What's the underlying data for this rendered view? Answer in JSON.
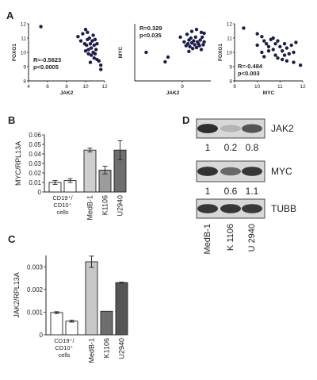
{
  "panels": {
    "a_letter": "A",
    "b_letter": "B",
    "c_letter": "C",
    "d_letter": "D"
  },
  "chart_data": [
    {
      "panel": "A",
      "type": "scatter",
      "xlabel": "JAK2",
      "ylabel": "FOXO1",
      "xlim": [
        4,
        12
      ],
      "ylim": [
        8,
        12
      ],
      "xticks": [
        "4",
        "6",
        "8",
        "10",
        "12"
      ],
      "yticks": [
        "8",
        "9",
        "10",
        "11",
        "12"
      ],
      "annotation": [
        "R=-0.5623",
        "p<0.0005"
      ],
      "points": [
        [
          5.3,
          11.8
        ],
        [
          9.2,
          11.1
        ],
        [
          9.5,
          10.8
        ],
        [
          9.7,
          11.3
        ],
        [
          10.0,
          11.6
        ],
        [
          10.1,
          10.5
        ],
        [
          10.2,
          10.9
        ],
        [
          10.3,
          10.2
        ],
        [
          10.4,
          11.0
        ],
        [
          10.5,
          10.6
        ],
        [
          10.6,
          10.3
        ],
        [
          10.7,
          10.8
        ],
        [
          10.8,
          10.0
        ],
        [
          10.9,
          10.5
        ],
        [
          11.0,
          10.9
        ],
        [
          11.1,
          10.2
        ],
        [
          11.2,
          10.6
        ],
        [
          10.0,
          10.1
        ],
        [
          10.3,
          9.9
        ],
        [
          10.6,
          9.8
        ],
        [
          10.9,
          9.6
        ],
        [
          11.0,
          9.9
        ],
        [
          11.2,
          9.5
        ],
        [
          11.4,
          9.4
        ],
        [
          10.5,
          9.3
        ],
        [
          11.6,
          9.1
        ],
        [
          11.6,
          8.8
        ],
        [
          9.9,
          10.6
        ],
        [
          10.2,
          11.4
        ],
        [
          10.8,
          11.2
        ]
      ]
    },
    {
      "panel": "A",
      "type": "scatter",
      "xlabel": "JAK2",
      "ylabel": "MYC",
      "xlim": [
        4,
        12
      ],
      "ylim": [
        6,
        12
      ],
      "xticks": [
        "9"
      ],
      "yticks": [],
      "annotation": [
        "R=0.329",
        "p<0.035"
      ],
      "points": [
        [
          5.2,
          9.0
        ],
        [
          7.2,
          8.0
        ],
        [
          7.5,
          8.5
        ],
        [
          8.8,
          10.6
        ],
        [
          9.2,
          10.1
        ],
        [
          9.4,
          9.7
        ],
        [
          9.5,
          10.9
        ],
        [
          9.6,
          9.9
        ],
        [
          9.7,
          10.3
        ],
        [
          9.8,
          9.6
        ],
        [
          9.9,
          10.5
        ],
        [
          10.0,
          10.0
        ],
        [
          10.1,
          9.4
        ],
        [
          10.2,
          10.2
        ],
        [
          10.3,
          9.8
        ],
        [
          10.4,
          10.6
        ],
        [
          10.5,
          9.5
        ],
        [
          10.6,
          10.1
        ],
        [
          10.7,
          9.9
        ],
        [
          10.8,
          9.7
        ],
        [
          10.9,
          10.3
        ],
        [
          11.0,
          9.3
        ],
        [
          11.1,
          10.6
        ],
        [
          11.2,
          9.8
        ],
        [
          11.3,
          10.1
        ],
        [
          10.0,
          11.2
        ],
        [
          10.5,
          11.4
        ],
        [
          11.0,
          11.1
        ],
        [
          11.3,
          11.0
        ],
        [
          9.7,
          9.1
        ]
      ]
    },
    {
      "panel": "A",
      "type": "scatter",
      "xlabel": "MYC",
      "ylabel": "FOXO1",
      "xlim": [
        9,
        12
      ],
      "ylim": [
        8,
        12
      ],
      "xticks": [
        "9",
        "10",
        "11",
        "12"
      ],
      "yticks": [
        "8",
        "9",
        "10",
        "11",
        "12"
      ],
      "annotation": [
        "R=-0.484",
        "p<0.003"
      ],
      "points": [
        [
          9.4,
          11.7
        ],
        [
          10.0,
          11.3
        ],
        [
          10.2,
          11.1
        ],
        [
          10.3,
          10.8
        ],
        [
          10.4,
          10.6
        ],
        [
          10.5,
          10.4
        ],
        [
          10.6,
          10.9
        ],
        [
          10.7,
          10.2
        ],
        [
          10.8,
          10.6
        ],
        [
          10.9,
          10.8
        ],
        [
          11.0,
          10.4
        ],
        [
          11.1,
          10.1
        ],
        [
          11.2,
          10.6
        ],
        [
          11.3,
          10.3
        ],
        [
          11.4,
          9.9
        ],
        [
          11.5,
          10.5
        ],
        [
          11.6,
          10.0
        ],
        [
          10.2,
          10.0
        ],
        [
          10.5,
          10.1
        ],
        [
          10.8,
          9.8
        ],
        [
          10.9,
          9.6
        ],
        [
          11.1,
          9.5
        ],
        [
          11.2,
          9.8
        ],
        [
          11.6,
          9.3
        ],
        [
          11.9,
          9.1
        ],
        [
          10.0,
          10.5
        ],
        [
          10.3,
          9.7
        ],
        [
          11.7,
          10.7
        ],
        [
          10.7,
          11.0
        ],
        [
          11.3,
          9.4
        ]
      ]
    },
    {
      "panel": "B",
      "type": "bar",
      "ylabel": "MYC/RPL13A",
      "ylim": [
        0,
        0.06
      ],
      "yticks": [
        "0",
        "0.01",
        "0.02",
        "0.03",
        "0.04",
        "0.05",
        "0.06"
      ],
      "categories": [
        "CD19+/CD10+ cells",
        "CD19+/CD10+ cells",
        "MedB-1",
        "K1106",
        "U2940"
      ],
      "category_labels": [
        "CD19⁺/",
        "CD10⁺",
        "cells",
        "MedB-1",
        "K1106",
        "U2940"
      ],
      "values": [
        0.01,
        0.012,
        0.044,
        0.023,
        0.044
      ],
      "errors": [
        0.002,
        0.002,
        0.002,
        0.004,
        0.01
      ],
      "colors": [
        "#ffffff",
        "#ffffff",
        "#cfcfcf",
        "#9c9c9c",
        "#6e6e6e"
      ]
    },
    {
      "panel": "C",
      "type": "bar",
      "ylabel": "JAK2/RPL13A",
      "ylim": [
        0,
        0.0035
      ],
      "yticks": [
        "0",
        "0.001",
        "0.002",
        "0.003"
      ],
      "categories": [
        "CD19+/CD10+ cells",
        "CD19+/CD10+ cells",
        "MedB-1",
        "K1106",
        "U2940"
      ],
      "category_labels": [
        "CD19⁺/",
        "CD10⁺",
        "cells",
        "MedB-1",
        "K1106",
        "U2940"
      ],
      "values": [
        0.00098,
        0.0006,
        0.00322,
        0.00104,
        0.0023
      ],
      "errors": [
        4e-05,
        4e-05,
        0.00025,
        0.0,
        2e-05
      ],
      "colors": [
        "#ffffff",
        "#ffffff",
        "#c8c8c8",
        "#6e6e6e",
        "#555555"
      ]
    }
  ],
  "western_blot": {
    "rows": [
      {
        "protein": "JAK2",
        "values": [
          "1",
          "0.2",
          "0.8"
        ]
      },
      {
        "protein": "MYC",
        "values": [
          "1",
          "0.6",
          "1.1"
        ]
      },
      {
        "protein": "TUBB",
        "values": []
      }
    ],
    "lanes": [
      "MedB-1",
      "K 1106",
      "U 2940"
    ]
  }
}
